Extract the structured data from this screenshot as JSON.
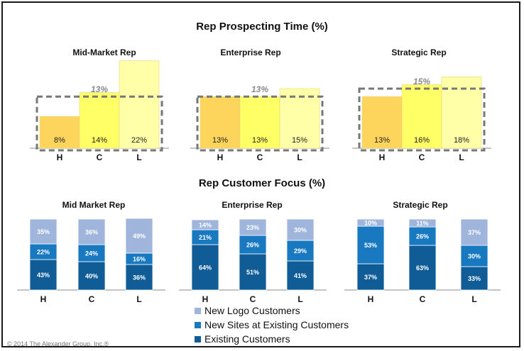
{
  "titles": {
    "prospecting": "Rep Prospecting Time (%)",
    "focus": "Rep Customer Focus (%)"
  },
  "colors": {
    "H": "#fdd55c",
    "C": "#ffff66",
    "L": "#ffffa8",
    "new_logo": "#9fb5dc",
    "new_sites": "#1878c0",
    "existing": "#0f5c96",
    "dashed_box": "#777777"
  },
  "chart_data": [
    {
      "type": "bar",
      "title": "Rep Prospecting Time (%)",
      "panels": [
        {
          "title": "Mid-Market Rep",
          "categories": [
            "H",
            "C",
            "L"
          ],
          "values": [
            8,
            14,
            22
          ],
          "labels": [
            "8%",
            "14%",
            "22%"
          ],
          "average_label": "13%"
        },
        {
          "title": "Enterprise Rep",
          "categories": [
            "H",
            "C",
            "L"
          ],
          "values": [
            13,
            13,
            15
          ],
          "labels": [
            "13%",
            "13%",
            "15%"
          ],
          "average_label": "13%"
        },
        {
          "title": "Strategic Rep",
          "categories": [
            "H",
            "C",
            "L"
          ],
          "values": [
            13,
            16,
            18
          ],
          "labels": [
            "13%",
            "16%",
            "18%"
          ],
          "average_label": "15%"
        }
      ]
    },
    {
      "type": "bar",
      "stacked": true,
      "title": "Rep Customer Focus (%)",
      "legend": [
        "New Logo Customers",
        "New Sites at Existing Customers",
        "Existing Customers"
      ],
      "legend_position": "bottom",
      "panels": [
        {
          "title": "Mid Market Rep",
          "categories": [
            "H",
            "C",
            "L"
          ],
          "series": [
            {
              "name": "Existing Customers",
              "values": [
                43,
                40,
                36
              ]
            },
            {
              "name": "New Sites at Existing Customers",
              "values": [
                22,
                24,
                16
              ]
            },
            {
              "name": "New Logo Customers",
              "values": [
                35,
                36,
                49
              ]
            }
          ]
        },
        {
          "title": "Enterprise Rep",
          "categories": [
            "H",
            "C",
            "L"
          ],
          "series": [
            {
              "name": "Existing Customers",
              "values": [
                64,
                51,
                41
              ]
            },
            {
              "name": "New Sites at Existing Customers",
              "values": [
                21,
                26,
                29
              ]
            },
            {
              "name": "New Logo Customers",
              "values": [
                14,
                23,
                30
              ]
            }
          ]
        },
        {
          "title": "Strategic Rep",
          "categories": [
            "H",
            "C",
            "L"
          ],
          "series": [
            {
              "name": "Existing Customers",
              "values": [
                37,
                63,
                33
              ]
            },
            {
              "name": "New Sites at Existing Customers",
              "values": [
                53,
                26,
                30
              ]
            },
            {
              "name": "New Logo Customers",
              "values": [
                10,
                11,
                37
              ]
            }
          ]
        }
      ]
    }
  ],
  "footer": "© 2014 The Alexander Group, Inc.®"
}
